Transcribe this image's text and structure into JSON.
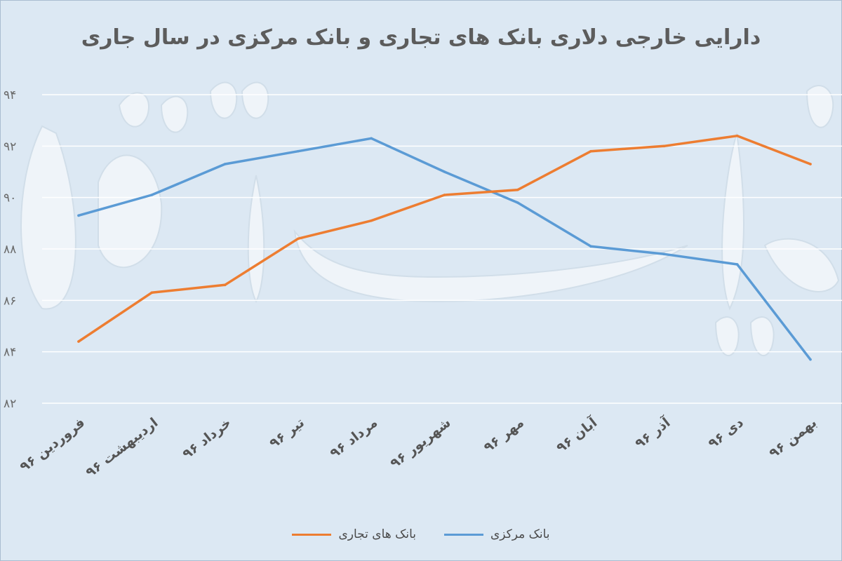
{
  "chart_data": {
    "type": "line",
    "title": "دارایی خارجی دلاری بانک های تجاری و بانک مرکزی در سال جاری",
    "categories": [
      "فروردین ۹۶",
      "اردیبهشت ۹۶",
      "خرداد ۹۶",
      "تیر ۹۶",
      "مرداد ۹۶",
      "شهریور ۹۶",
      "مهر ۹۶",
      "آبان ۹۶",
      "آذر ۹۶",
      "دی ۹۶",
      "بهمن ۹۶"
    ],
    "y_ticks": [
      "۹۴",
      "۹۲",
      "۹۰",
      "۸۸",
      "۸۶",
      "۸۴",
      "۸۲"
    ],
    "ylim": [
      82,
      94
    ],
    "grid": true,
    "legend_position": "bottom",
    "series": [
      {
        "name": "بانک مرکزی",
        "color": "#5b9bd5",
        "values": [
          89.3,
          90.1,
          91.3,
          91.8,
          92.3,
          91.0,
          89.8,
          88.1,
          87.8,
          87.4,
          83.7
        ]
      },
      {
        "name": "بانک های تجاری",
        "color": "#ed7d31",
        "values": [
          84.4,
          86.3,
          86.6,
          88.4,
          89.1,
          90.1,
          90.3,
          91.8,
          92.0,
          92.4,
          91.3
        ]
      }
    ]
  }
}
